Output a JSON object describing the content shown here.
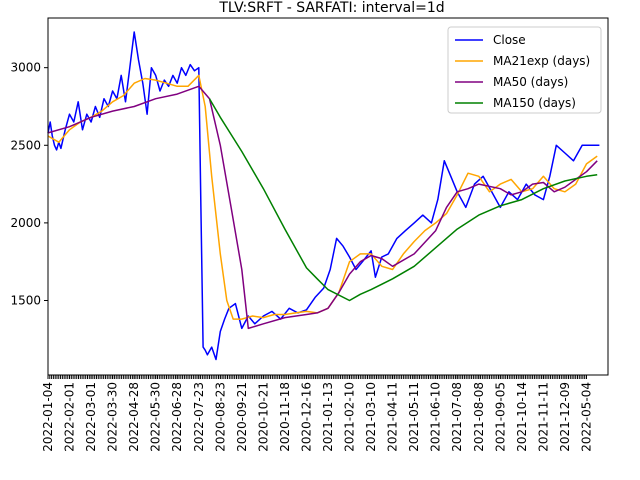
{
  "chart_data": {
    "type": "line",
    "title": "TLV:SRFT - SARFATI: interval=1d",
    "xlabel": "",
    "ylabel": "",
    "ylim": [
      1020,
      3320
    ],
    "yticks": [
      1500,
      2000,
      2500,
      3000
    ],
    "grid": false,
    "legend_position": "top-right",
    "x_tick_labels": [
      "2022-01-04",
      "2022-02-01",
      "2022-03-01",
      "2022-03-30",
      "2022-04-28",
      "2022-05-30",
      "2022-06-28",
      "2022-07-23",
      "2020-08-23",
      "2020-09-21",
      "2020-10-21",
      "2020-11-18",
      "2020-12-16",
      "2021-01-13",
      "2021-02-10",
      "2021-03-10",
      "2021-04-11",
      "2021-05-11",
      "2021-06-10",
      "2021-07-08",
      "2021-08-08",
      "2021-09-05",
      "2021-10-14",
      "2021-11-11",
      "2021-12-09",
      "2022-05-04"
    ],
    "x_range": [
      0,
      26
    ],
    "series": [
      {
        "name": "Close",
        "color": "#0000ff",
        "x": [
          0,
          0.1,
          0.2,
          0.3,
          0.4,
          0.5,
          0.6,
          0.8,
          1.0,
          1.2,
          1.4,
          1.6,
          1.8,
          2.0,
          2.2,
          2.4,
          2.6,
          2.8,
          3.0,
          3.2,
          3.4,
          3.6,
          3.8,
          4.0,
          4.2,
          4.4,
          4.6,
          4.8,
          5.0,
          5.2,
          5.4,
          5.6,
          5.8,
          6.0,
          6.2,
          6.4,
          6.6,
          6.8,
          7.0,
          7.1,
          7.2,
          7.3,
          7.4,
          7.6,
          7.8,
          8.0,
          8.2,
          8.4,
          8.7,
          9.0,
          9.3,
          9.6,
          10.0,
          10.4,
          10.8,
          11.2,
          11.6,
          12.0,
          12.4,
          12.8,
          13.1,
          13.4,
          13.7,
          14.0,
          14.3,
          14.6,
          15.0,
          15.2,
          15.5,
          15.8,
          16.2,
          16.6,
          17.0,
          17.4,
          17.8,
          18.1,
          18.4,
          18.7,
          19.0,
          19.4,
          19.8,
          20.2,
          20.6,
          21.0,
          21.4,
          21.8,
          22.2,
          22.6,
          23.0,
          23.3,
          23.6,
          24.0,
          24.4,
          24.8,
          25.2,
          25.6
        ],
        "y": [
          2580,
          2650,
          2560,
          2500,
          2470,
          2520,
          2480,
          2600,
          2700,
          2650,
          2780,
          2600,
          2700,
          2650,
          2750,
          2680,
          2800,
          2750,
          2850,
          2800,
          2950,
          2780,
          3000,
          3230,
          3050,
          2900,
          2700,
          3000,
          2950,
          2850,
          2920,
          2880,
          2950,
          2900,
          3000,
          2950,
          3020,
          2980,
          3000,
          2100,
          1200,
          1180,
          1150,
          1200,
          1120,
          1300,
          1380,
          1450,
          1480,
          1320,
          1400,
          1350,
          1400,
          1430,
          1380,
          1450,
          1420,
          1440,
          1520,
          1580,
          1700,
          1900,
          1850,
          1780,
          1700,
          1750,
          1820,
          1650,
          1780,
          1800,
          1900,
          1950,
          2000,
          2050,
          2000,
          2150,
          2400,
          2300,
          2200,
          2100,
          2250,
          2300,
          2200,
          2100,
          2200,
          2150,
          2250,
          2180,
          2150,
          2300,
          2500,
          2450,
          2400,
          2500,
          2500,
          2500
        ]
      },
      {
        "name": "MA21exp (days)",
        "color": "#ffa500",
        "x": [
          0,
          0.5,
          1.0,
          1.5,
          2.0,
          2.5,
          3.0,
          3.5,
          4.0,
          4.5,
          5.0,
          5.5,
          6.0,
          6.5,
          7.0,
          7.3,
          7.6,
          8.0,
          8.3,
          8.6,
          9.0,
          9.5,
          10.0,
          10.5,
          11.0,
          11.5,
          12.0,
          12.5,
          13.0,
          13.5,
          14.0,
          14.5,
          15.0,
          15.5,
          16.0,
          16.5,
          17.0,
          17.5,
          18.0,
          18.5,
          19.0,
          19.5,
          20.0,
          20.5,
          21.0,
          21.5,
          22.0,
          22.5,
          23.0,
          23.5,
          24.0,
          24.5,
          25.0,
          25.5
        ],
        "y": [
          2560,
          2520,
          2600,
          2650,
          2680,
          2720,
          2780,
          2820,
          2900,
          2930,
          2920,
          2900,
          2880,
          2880,
          2950,
          2750,
          2300,
          1800,
          1500,
          1380,
          1380,
          1400,
          1390,
          1410,
          1410,
          1420,
          1430,
          1420,
          1450,
          1550,
          1750,
          1800,
          1800,
          1720,
          1700,
          1800,
          1880,
          1950,
          2000,
          2060,
          2180,
          2320,
          2300,
          2200,
          2250,
          2280,
          2200,
          2220,
          2300,
          2220,
          2200,
          2250,
          2380,
          2430
        ]
      },
      {
        "name": "MA50 (days)",
        "color": "#800080",
        "x": [
          0,
          1.0,
          2.0,
          3.0,
          4.0,
          5.0,
          6.0,
          7.0,
          7.5,
          8.0,
          8.5,
          9.0,
          9.3,
          10.0,
          11.0,
          12.0,
          12.5,
          13.0,
          13.5,
          14.0,
          14.5,
          15.0,
          15.5,
          16.0,
          17.0,
          18.0,
          18.5,
          19.0,
          19.5,
          20.0,
          21.0,
          21.5,
          22.0,
          22.5,
          23.0,
          23.5,
          24.0,
          24.5,
          25.0,
          25.5
        ],
        "y": [
          2580,
          2620,
          2680,
          2720,
          2750,
          2800,
          2830,
          2880,
          2800,
          2500,
          2100,
          1700,
          1320,
          1350,
          1390,
          1410,
          1420,
          1450,
          1550,
          1670,
          1750,
          1790,
          1770,
          1720,
          1800,
          1950,
          2100,
          2200,
          2220,
          2250,
          2220,
          2180,
          2200,
          2250,
          2260,
          2200,
          2230,
          2280,
          2330,
          2400
        ]
      },
      {
        "name": "MA150 (days)",
        "color": "#008000",
        "x": [
          7.5,
          8.0,
          9.0,
          10.0,
          11.0,
          12.0,
          12.5,
          13.0,
          14.0,
          14.5,
          15.0,
          16.0,
          17.0,
          18.0,
          19.0,
          20.0,
          21.0,
          22.0,
          23.0,
          24.0,
          25.0,
          25.5
        ],
        "y": [
          2800,
          2680,
          2460,
          2220,
          1960,
          1710,
          1640,
          1570,
          1500,
          1540,
          1570,
          1640,
          1720,
          1840,
          1960,
          2050,
          2110,
          2150,
          2220,
          2270,
          2300,
          2310
        ]
      }
    ]
  }
}
